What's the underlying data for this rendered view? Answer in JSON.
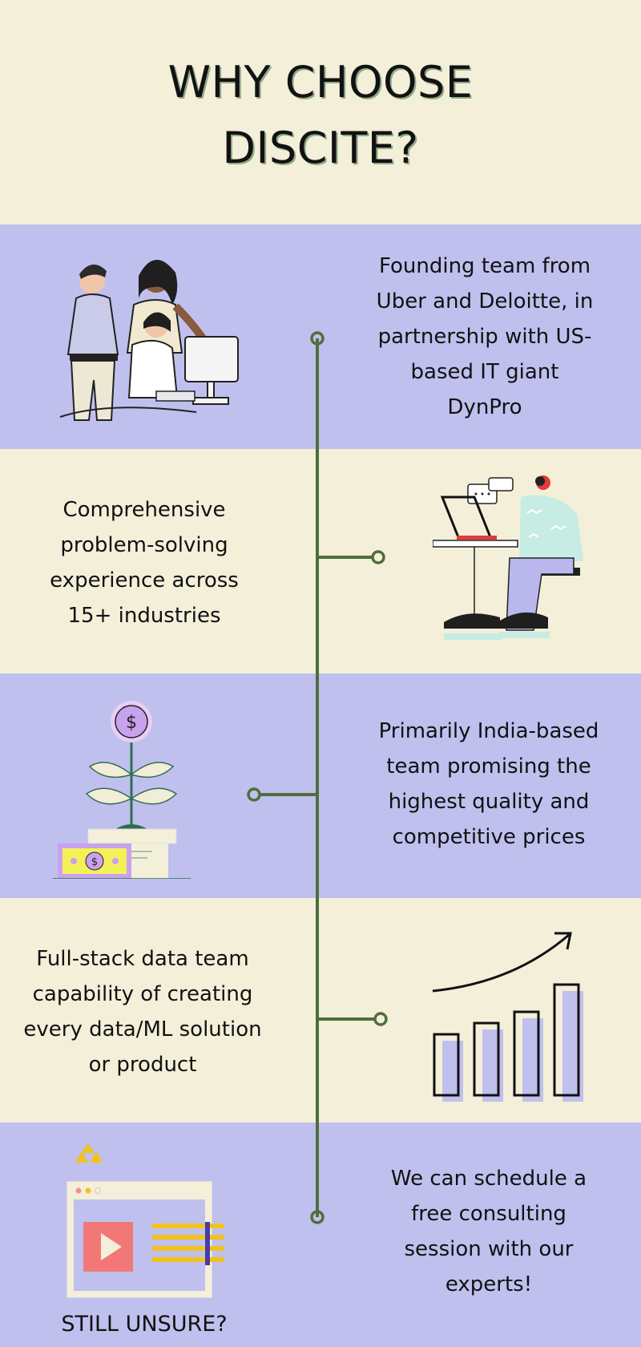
{
  "title": "WHY CHOOSE\nDISCITE?",
  "sections": [
    {
      "text": "Founding team from\nUber and Deloitte, in\npartnership with US-\nbased IT giant\nDynPro",
      "illustration": "team-at-computer-illustration"
    },
    {
      "text": "Comprehensive\nproblem-solving\nexperience across\n15+ industries",
      "illustration": "person-with-laptop-illustration"
    },
    {
      "text": "Primarily India-based\nteam promising the\nhighest quality and\ncompetitive prices",
      "illustration": "money-plant-illustration"
    },
    {
      "text": "Full-stack data team\ncapability of creating\nevery data/ML solution\nor product",
      "illustration": "growth-bar-chart-illustration"
    },
    {
      "text": "We can schedule a\nfree consulting\nsession with our\nexperts!",
      "illustration": "video-browser-window-illustration"
    }
  ],
  "bottom_label": "STILL UNSURE?",
  "colors": {
    "cream": "#f4efd9",
    "lavender": "#bfc0ee",
    "timeline": "#4f6e3c",
    "title_shadow": "#8fa98a"
  }
}
